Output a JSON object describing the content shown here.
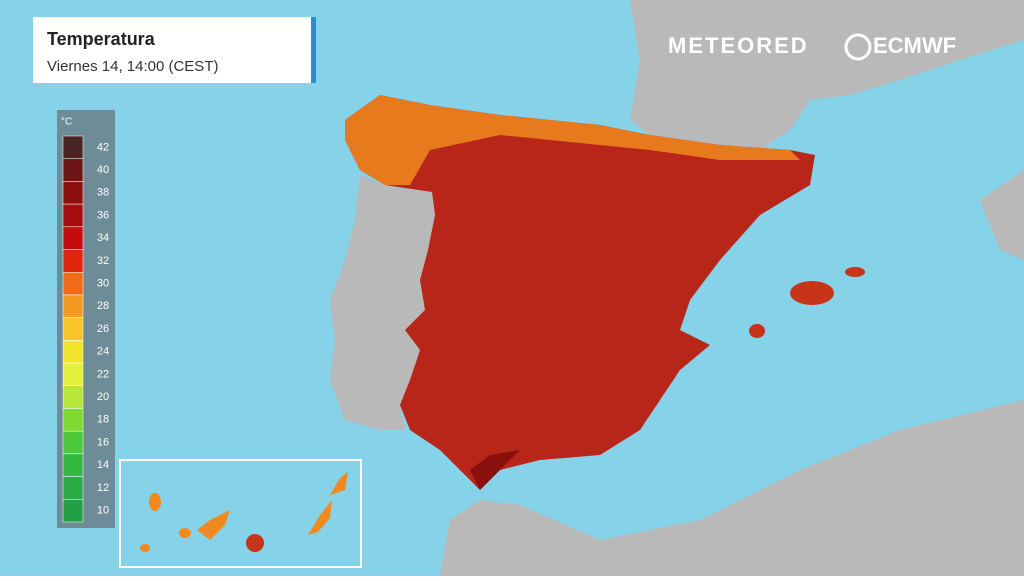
{
  "header": {
    "title": "Temperatura",
    "subtitle": "Viernes 14, 14:00 (CEST)"
  },
  "logos": [
    "METEORED",
    "ECMWF"
  ],
  "legend": {
    "unit": "°C",
    "items": [
      {
        "label": "42",
        "color": "#4b2424"
      },
      {
        "label": "40",
        "color": "#6e1616"
      },
      {
        "label": "38",
        "color": "#8b1010"
      },
      {
        "label": "36",
        "color": "#a80d0d"
      },
      {
        "label": "34",
        "color": "#c40c0c"
      },
      {
        "label": "32",
        "color": "#e0260f"
      },
      {
        "label": "30",
        "color": "#f06a1a"
      },
      {
        "label": "28",
        "color": "#f59a20"
      },
      {
        "label": "26",
        "color": "#f7c52a"
      },
      {
        "label": "24",
        "color": "#f2e42a"
      },
      {
        "label": "22",
        "color": "#e6f03c"
      },
      {
        "label": "20",
        "color": "#b8e63a"
      },
      {
        "label": "18",
        "color": "#7ed832"
      },
      {
        "label": "16",
        "color": "#4cc83a"
      },
      {
        "label": "14",
        "color": "#34b840"
      },
      {
        "label": "12",
        "color": "#2aac44"
      },
      {
        "label": "10",
        "color": "#24a044"
      }
    ]
  }
}
